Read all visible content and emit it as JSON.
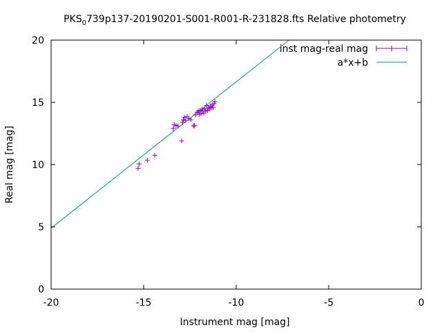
{
  "chart_data": {
    "type": "scatter",
    "title_prefix": "PKS",
    "title_sub": "0",
    "title_rest": "739p137-20190201-S001-R001-R-231828.fts Relative photometry",
    "xlabel": "Instrument mag [mag]",
    "ylabel": "Real mag [mag]",
    "xlim": [
      -20,
      0
    ],
    "ylim": [
      0,
      20
    ],
    "x_ticks": [
      -20,
      -15,
      -10,
      -5,
      0
    ],
    "x_tick_labels": [
      "-20",
      "-15",
      "-10",
      "-5",
      "0"
    ],
    "y_ticks": [
      0,
      5,
      10,
      15,
      20
    ],
    "y_tick_labels": [
      "0",
      "5",
      "10",
      "15",
      "20"
    ],
    "grid": false,
    "legend_position": "top-right",
    "series": [
      {
        "name": "inst mag-real mag",
        "kind": "points",
        "color": "#9400d3",
        "points": [
          [
            -15.3,
            9.7
          ],
          [
            -15.25,
            10.05
          ],
          [
            -14.8,
            10.35
          ],
          [
            -14.4,
            10.75
          ],
          [
            -13.4,
            12.9
          ],
          [
            -13.35,
            13.2
          ],
          [
            -13.25,
            13.15
          ],
          [
            -13.15,
            13.1
          ],
          [
            -12.95,
            11.9
          ],
          [
            -12.9,
            13.4
          ],
          [
            -12.85,
            13.6
          ],
          [
            -12.8,
            13.8
          ],
          [
            -12.75,
            13.55
          ],
          [
            -12.65,
            13.85
          ],
          [
            -12.55,
            13.7
          ],
          [
            -12.45,
            13.6
          ],
          [
            -12.3,
            13.1
          ],
          [
            -12.25,
            13.15
          ],
          [
            -12.2,
            14.0
          ],
          [
            -12.1,
            14.2
          ],
          [
            -12.05,
            14.3
          ],
          [
            -12.0,
            14.05
          ],
          [
            -11.95,
            14.35
          ],
          [
            -11.9,
            14.1
          ],
          [
            -11.85,
            14.45
          ],
          [
            -11.8,
            14.3
          ],
          [
            -11.75,
            14.15
          ],
          [
            -11.7,
            14.5
          ],
          [
            -11.65,
            14.3
          ],
          [
            -11.6,
            14.75
          ],
          [
            -11.55,
            14.35
          ],
          [
            -11.5,
            14.6
          ],
          [
            -11.45,
            14.45
          ],
          [
            -11.4,
            14.7
          ],
          [
            -11.35,
            14.55
          ],
          [
            -11.3,
            14.8
          ],
          [
            -11.25,
            14.6
          ],
          [
            -11.2,
            14.9
          ],
          [
            -11.15,
            15.05
          ]
        ]
      },
      {
        "name": "a*x+b",
        "kind": "line",
        "color": "#009e73",
        "line_points": [
          [
            -20,
            4.9
          ],
          [
            -7.15,
            20
          ]
        ]
      }
    ]
  }
}
